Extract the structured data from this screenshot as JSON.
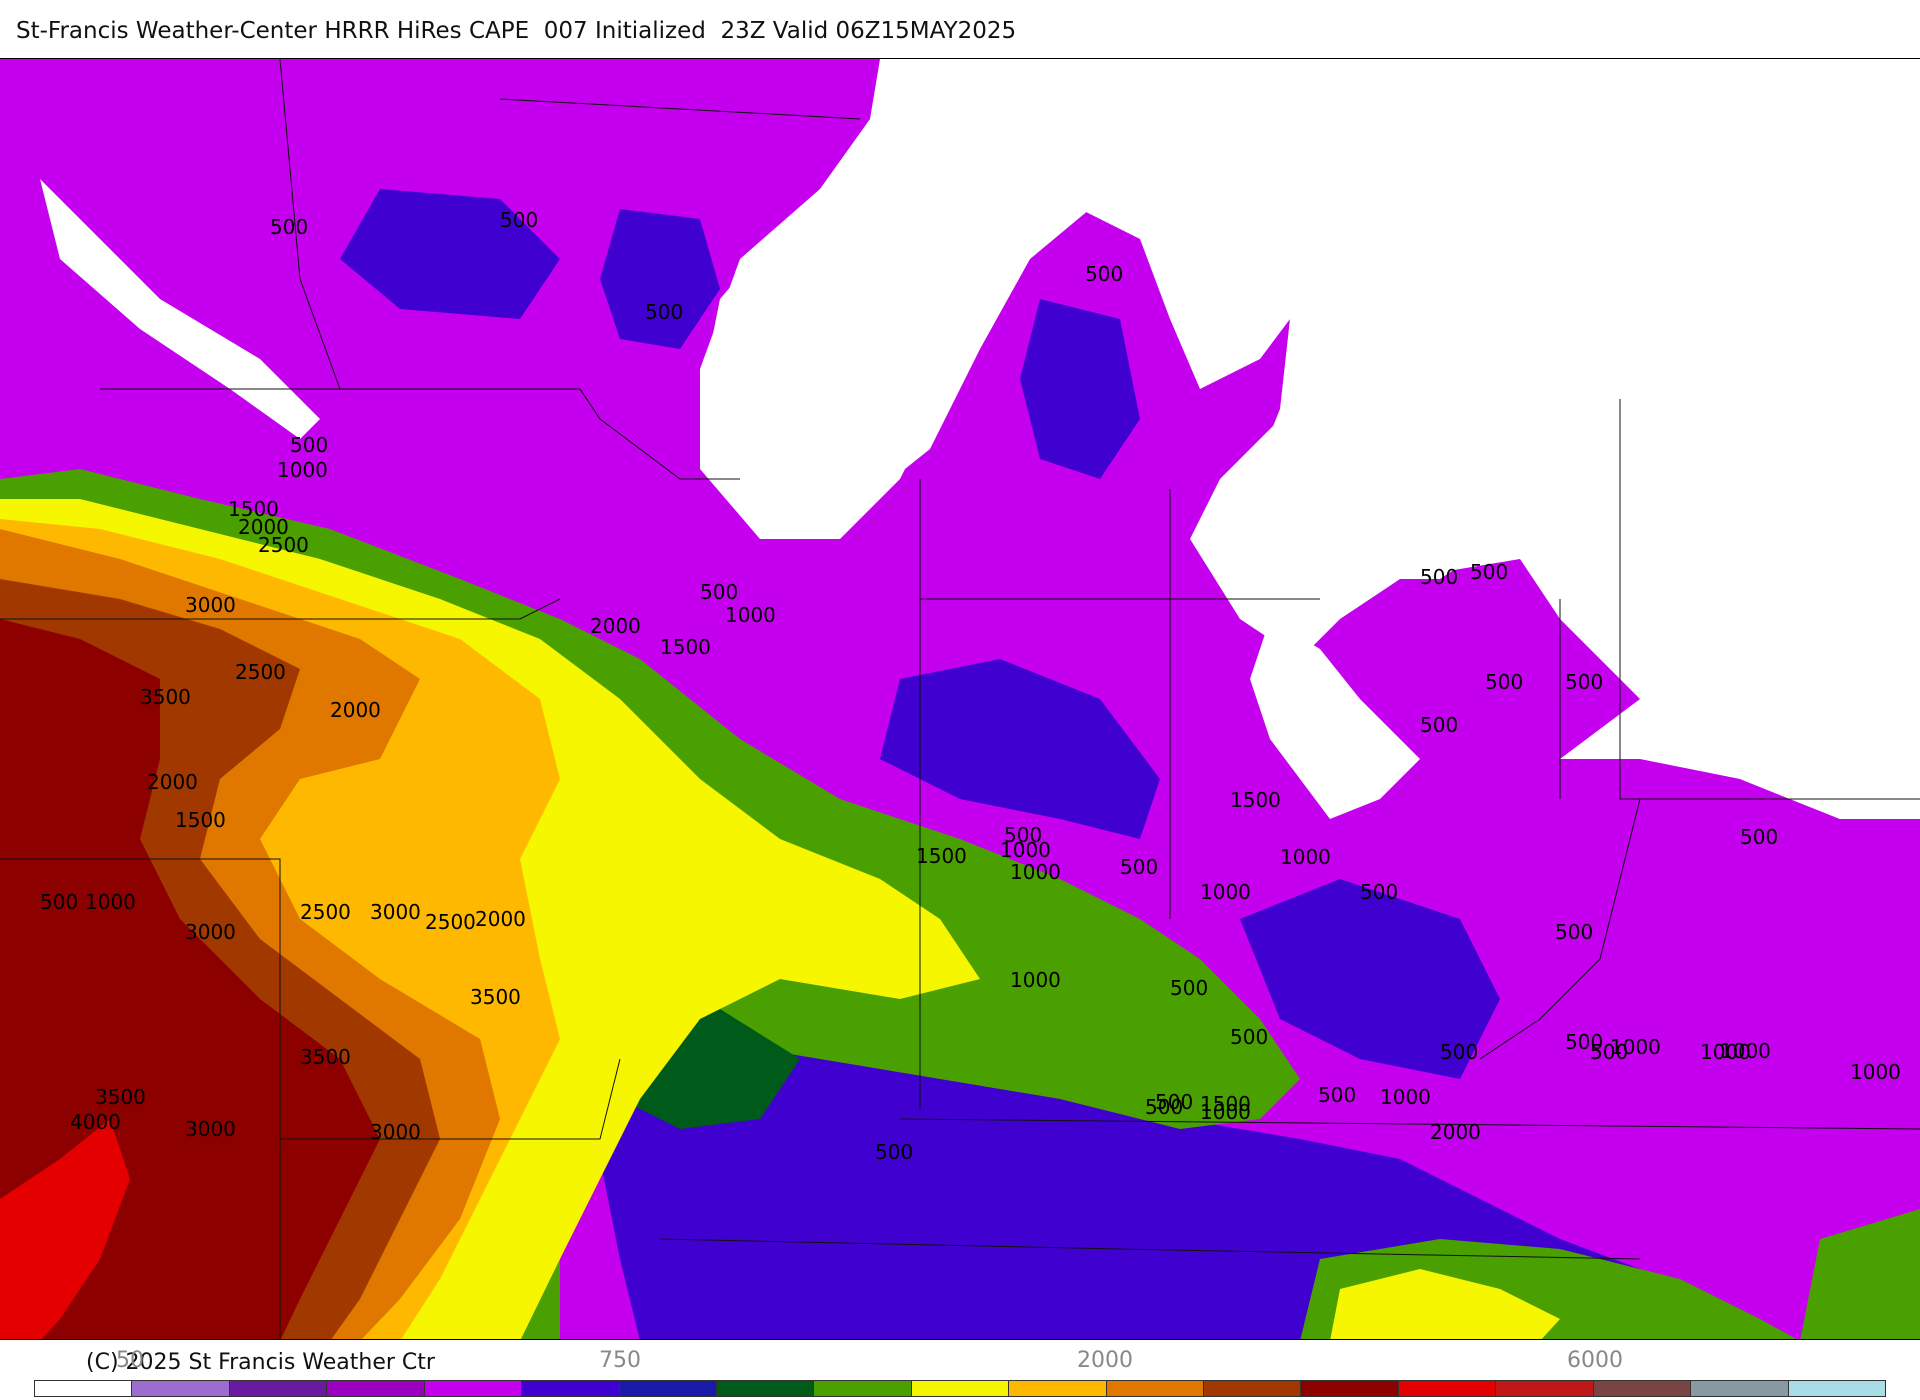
{
  "title": "St-Francis Weather-Center HRRR HiRes CAPE  007 Initialized  23Z Valid 06Z15MAY2025",
  "footer": {
    "copyright": "(C) 2025 St Francis Weather Ctr",
    "tick_labels": [
      "50",
      "",
      "750",
      "",
      "",
      "2000",
      "",
      "6000"
    ]
  },
  "colorbar": {
    "colors": [
      "#ffffff",
      "#9c6cd0",
      "#6a1aa0",
      "#9b00c0",
      "#c400ee",
      "#4000d0",
      "#1a1aa8",
      "#005a1a",
      "#4aa000",
      "#f6f600",
      "#ffb800",
      "#e07800",
      "#a03800",
      "#8c0000",
      "#e40000",
      "#c01818",
      "#7a4444",
      "#8899a4",
      "#a8dde8"
    ]
  },
  "map": {
    "variable": "CAPE",
    "contour_labels": [
      "500",
      "500",
      "500",
      "500",
      "500",
      "1000",
      "1500",
      "2000",
      "2500",
      "3000",
      "3500",
      "2500",
      "2000",
      "2000",
      "1500",
      "500",
      "1000",
      "3000",
      "3000",
      "2500",
      "3000",
      "2500",
      "2000",
      "3500",
      "3500",
      "3500",
      "4000",
      "3000",
      "500",
      "1000",
      "2000",
      "1500",
      "500",
      "1000",
      "1500",
      "1500",
      "1000",
      "500",
      "500",
      "500",
      "500",
      "500",
      "500",
      "500",
      "500",
      "500",
      "1000",
      "500",
      "1000",
      "1000",
      "500",
      "1000",
      "500",
      "500",
      "1000",
      "1000",
      "500",
      "1000",
      "500",
      "500",
      "500",
      "1500",
      "1000",
      "2000",
      "1000",
      "500"
    ]
  }
}
